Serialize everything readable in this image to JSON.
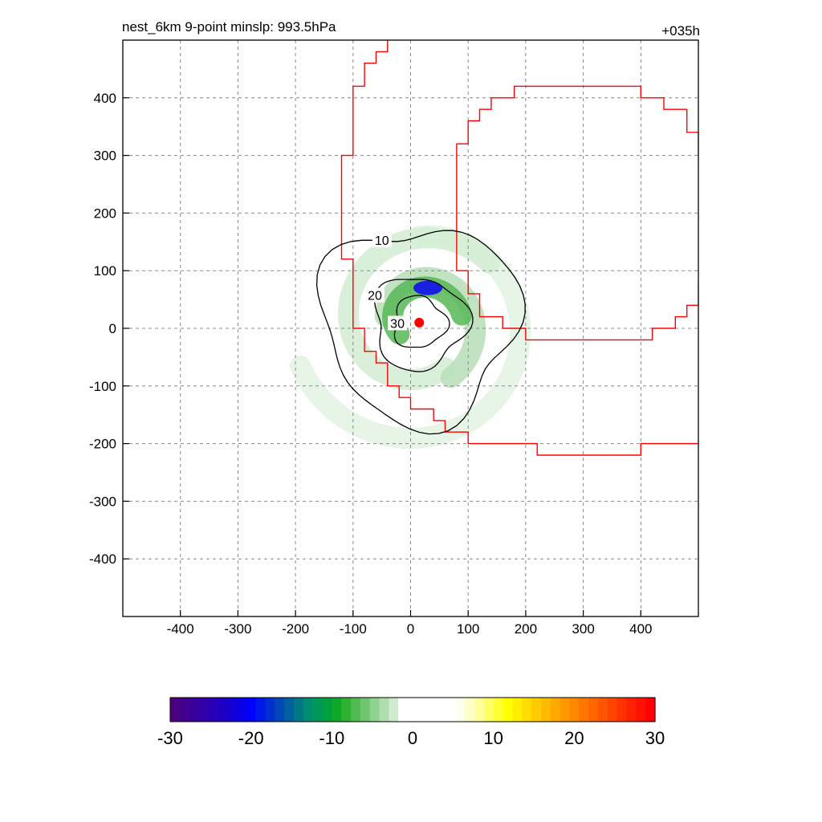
{
  "chart_data": {
    "type": "contour",
    "title_left": "nest_6km  9-point minslp: 993.5hPa",
    "title_right": "+035h",
    "xlim": [
      -500,
      500
    ],
    "ylim": [
      -500,
      500
    ],
    "x_ticks": [
      -400,
      -300,
      -200,
      -100,
      0,
      100,
      200,
      300,
      400
    ],
    "y_ticks": [
      400,
      300,
      200,
      100,
      0,
      -100,
      -200,
      -300,
      -400
    ],
    "grid": true,
    "center": [
      15,
      10
    ],
    "contours": [
      {
        "level": 10,
        "radius": 170,
        "label": "10"
      },
      {
        "level": 20,
        "radius": 80,
        "label": "20"
      },
      {
        "level": 30,
        "radius": 45,
        "label": "30"
      }
    ],
    "boundaries": [
      {
        "name": "inner",
        "color": "#ff0000",
        "half_width": 225
      },
      {
        "name": "outer",
        "color": "#ff0000",
        "half_width": 415
      }
    ],
    "colorbar": {
      "min": -30,
      "max": 30,
      "tick_values": [
        -30,
        -20,
        -10,
        0,
        10,
        20,
        30
      ],
      "tick_labels": [
        "-30",
        "-20",
        "-10",
        "0",
        "10",
        "20",
        "30"
      ],
      "colors": [
        "#4b0082",
        "#42008f",
        "#39009c",
        "#3000a8",
        "#2700b5",
        "#1e00c4",
        "#1400d4",
        "#0a00e6",
        "#0000ff",
        "#0018e8",
        "#0030d0",
        "#0048b8",
        "#0060a0",
        "#007888",
        "#008c70",
        "#009858",
        "#00a040",
        "#10a828",
        "#30b030",
        "#50bb50",
        "#70c670",
        "#90d290",
        "#b0ddb0",
        "#d0ead0",
        "#ffffff",
        "#ffffff",
        "#ffffff",
        "#ffffff",
        "#ffffff",
        "#ffffff",
        "#ffffee",
        "#ffffc8",
        "#ffff9e",
        "#ffff66",
        "#ffff33",
        "#ffff00",
        "#ffee00",
        "#ffdd00",
        "#ffcc00",
        "#ffbb00",
        "#ffaa00",
        "#ff9900",
        "#ff8800",
        "#ff7700",
        "#ff6600",
        "#ff5500",
        "#ff4400",
        "#ff3300",
        "#ff2200",
        "#ff1100",
        "#ff0000"
      ]
    }
  }
}
